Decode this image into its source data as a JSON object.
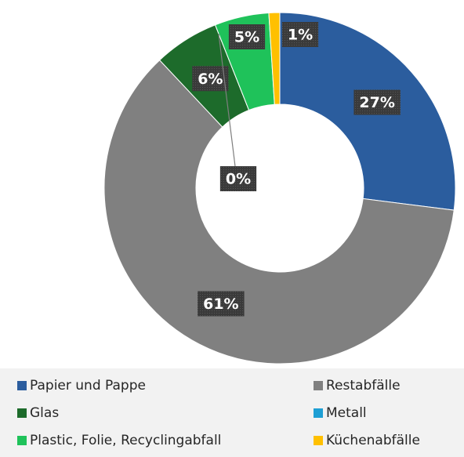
{
  "chart_data": {
    "type": "donut",
    "categories": [
      "Papier und Pappe",
      "Restabfälle",
      "Glas",
      "Metall",
      "Plastic, Folie, Recyclingabfall",
      "Küchenabfälle"
    ],
    "values": [
      27,
      61,
      6,
      0,
      5,
      1
    ],
    "value_labels": [
      "27%",
      "61%",
      "6%",
      "0%",
      "5%",
      "1%"
    ],
    "colors": [
      "#2b5d9e",
      "#808080",
      "#1d6b2b",
      "#1e9fd4",
      "#1fc25a",
      "#ffc000"
    ],
    "legend": "bottom"
  }
}
